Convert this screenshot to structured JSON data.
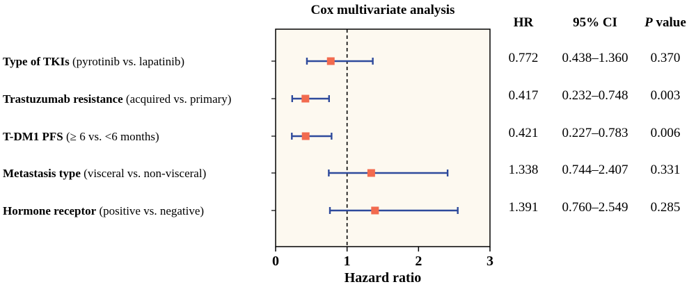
{
  "chart_data": {
    "type": "forest",
    "title": "Cox multivariate analysis",
    "xlabel": "Hazard ratio",
    "xlim": [
      0,
      3
    ],
    "xticks": [
      "0",
      "1",
      "2",
      "3"
    ],
    "reference_line": 1,
    "plot_background": "#fdf9f0",
    "marker_color": "#f26b4f",
    "ci_color": "#2e4a9c",
    "columns": {
      "hr": {
        "head": "HR"
      },
      "ci": {
        "head": "95% CI"
      },
      "p": {
        "head_italic": "P",
        "head_rest": " value"
      }
    },
    "rows": [
      {
        "label_bold": "Type of TKIs",
        "label_rest": " (pyrotinib vs. lapatinib)",
        "hr": 0.772,
        "lower": 0.438,
        "upper": 1.36,
        "hr_text": "0.772",
        "ci_text": "0.438–1.360",
        "p_text": "0.370"
      },
      {
        "label_bold": "Trastuzumab resistance",
        "label_rest": " (acquired vs. primary)",
        "hr": 0.417,
        "lower": 0.232,
        "upper": 0.748,
        "hr_text": "0.417",
        "ci_text": "0.232–0.748",
        "p_text": "0.003"
      },
      {
        "label_bold": "T-DM1 PFS",
        "label_rest": " (≥ 6 vs. <6 months)",
        "hr": 0.421,
        "lower": 0.227,
        "upper": 0.783,
        "hr_text": "0.421",
        "ci_text": "0.227–0.783",
        "p_text": "0.006"
      },
      {
        "label_bold": "Metastasis type",
        "label_rest": " (visceral vs. non-visceral)",
        "hr": 1.338,
        "lower": 0.744,
        "upper": 2.407,
        "hr_text": "1.338",
        "ci_text": "0.744–2.407",
        "p_text": "0.331"
      },
      {
        "label_bold": "Hormone receptor",
        "label_rest": " (positive vs. negative)",
        "hr": 1.391,
        "lower": 0.76,
        "upper": 2.549,
        "hr_text": "1.391",
        "ci_text": "0.760–2.549",
        "p_text": "0.285"
      }
    ]
  }
}
